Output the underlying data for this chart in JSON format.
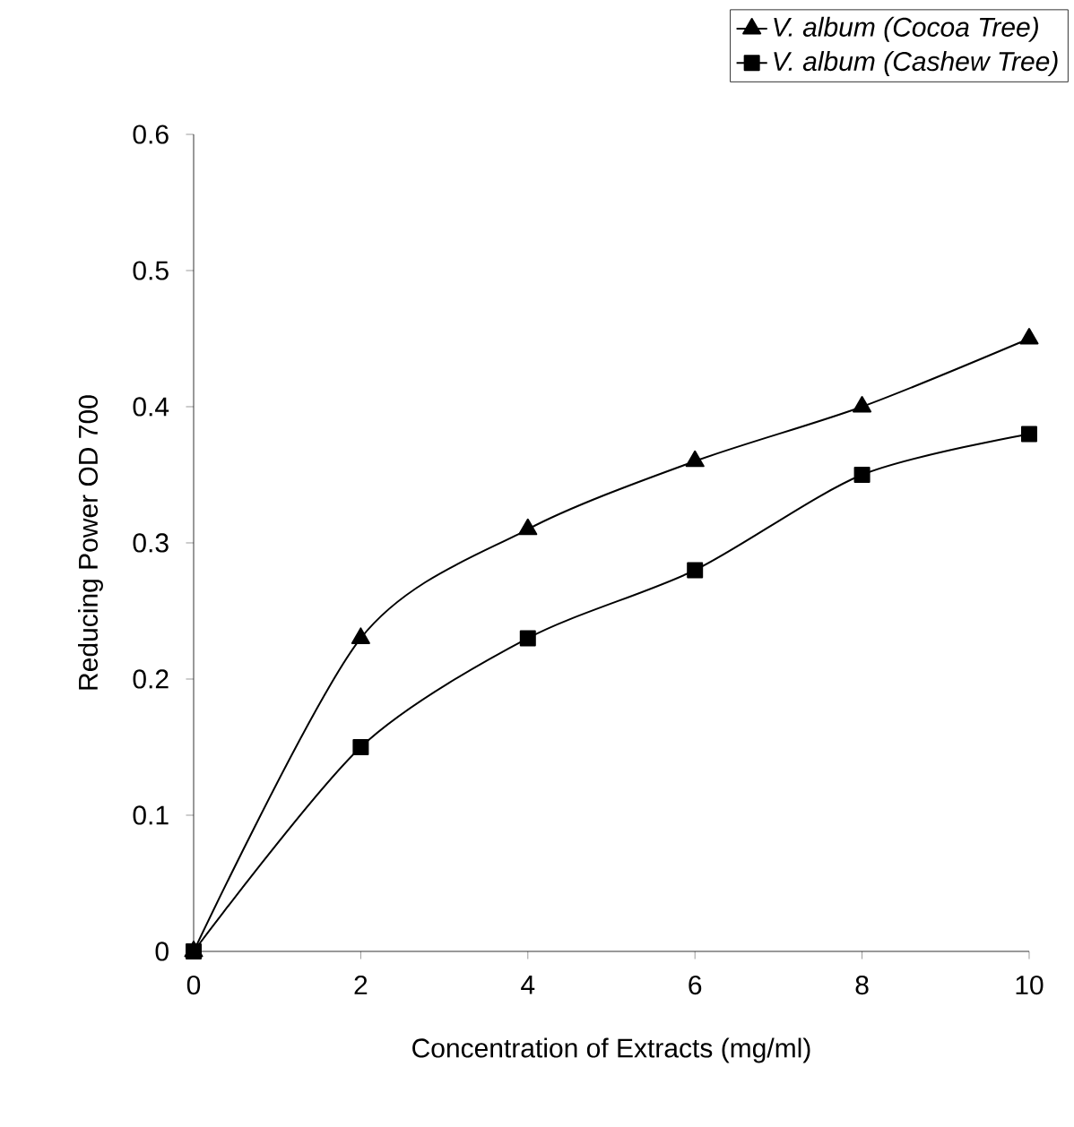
{
  "chart_data": {
    "type": "line",
    "xlabel": "Concentration of Extracts (mg/ml)",
    "ylabel": "Reducing Power OD 700",
    "x": [
      0,
      2,
      4,
      6,
      8,
      10
    ],
    "series": [
      {
        "name": "V. album (Cocoa Tree)",
        "color": "#000000",
        "marker": "triangle",
        "values": [
          0,
          0.23,
          0.31,
          0.36,
          0.4,
          0.45
        ]
      },
      {
        "name": "V. album (Cashew Tree)",
        "color": "#000000",
        "marker": "square",
        "values": [
          0,
          0.15,
          0.23,
          0.28,
          0.35,
          0.38
        ]
      }
    ],
    "xlim": [
      0,
      10
    ],
    "xticks": [
      0,
      2,
      4,
      6,
      8,
      10
    ],
    "ylim": [
      0,
      0.6
    ],
    "yticks": [
      0,
      0.1,
      0.2,
      0.3,
      0.4,
      0.5,
      0.6
    ],
    "legend": "top right",
    "line_style": "solid"
  }
}
